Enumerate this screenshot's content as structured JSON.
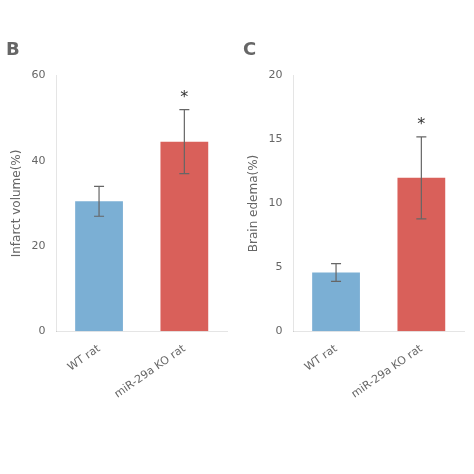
{
  "chart_data": [
    {
      "type": "bar",
      "title": "B",
      "categories": [
        "WT rat",
        "miR-29a KO rat"
      ],
      "values": [
        30.5,
        44.5
      ],
      "errors": [
        3.5,
        7.5
      ],
      "colors": [
        "#7bafd4",
        "#d9605a"
      ],
      "ylabel": "Infarct volume(%)",
      "ylim": [
        0,
        60
      ],
      "yticks": [
        0,
        20,
        40,
        60
      ],
      "annotations": [
        {
          "text": "*",
          "category": "miR-29a KO rat"
        }
      ],
      "grid": false
    },
    {
      "type": "bar",
      "title": "C",
      "categories": [
        "WT rat",
        "miR-29a KO rat"
      ],
      "values": [
        4.6,
        12.0
      ],
      "errors": [
        0.7,
        3.2
      ],
      "colors": [
        "#7bafd4",
        "#d9605a"
      ],
      "ylabel": "Brain edema(%)",
      "ylim": [
        0,
        20
      ],
      "yticks": [
        0,
        5,
        10,
        15,
        20
      ],
      "annotations": [
        {
          "text": "*",
          "category": "miR-29a KO rat"
        }
      ],
      "grid": false
    }
  ]
}
